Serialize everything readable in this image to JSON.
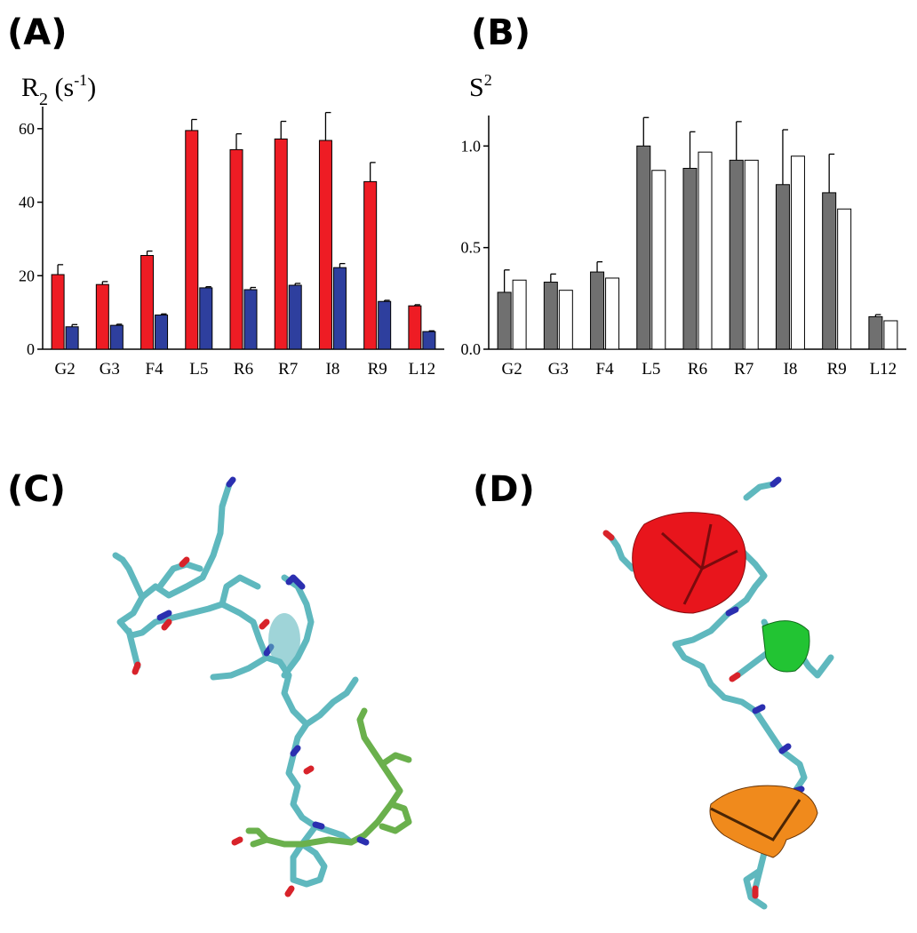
{
  "panels": {
    "a": "(A)",
    "b": "(B)",
    "c": "(C)",
    "d": "(D)"
  },
  "chart_data": [
    {
      "type": "bar",
      "panel": "(A)",
      "ylabel": "R2 (s-1)",
      "categories": [
        "G2",
        "G3",
        "F4",
        "L5",
        "R6",
        "R7",
        "I8",
        "R9",
        "L12"
      ],
      "ylim": [
        0,
        66
      ],
      "yticks": [
        0,
        20,
        40,
        60
      ],
      "grid": false,
      "series": [
        {
          "color": "#ee1c24",
          "values": [
            20.3,
            17.6,
            25.5,
            59.5,
            54.3,
            57.2,
            56.8,
            45.6,
            11.8
          ],
          "errors": [
            2.7,
            0.8,
            1.2,
            3.0,
            4.3,
            4.8,
            7.6,
            5.2,
            0.3
          ]
        },
        {
          "color": "#2e3f9e",
          "values": [
            6.1,
            6.5,
            9.3,
            16.7,
            16.2,
            17.4,
            22.2,
            13.0,
            4.8
          ],
          "errors": [
            0.6,
            0.3,
            0.3,
            0.3,
            0.6,
            0.5,
            1.1,
            0.3,
            0.2
          ]
        }
      ]
    },
    {
      "type": "bar",
      "panel": "(B)",
      "ylabel": "S2",
      "categories": [
        "G2",
        "G3",
        "F4",
        "L5",
        "R6",
        "R7",
        "I8",
        "R9",
        "L12"
      ],
      "ylim": [
        0,
        1.15
      ],
      "yticks": [
        0.0,
        0.5,
        1.0
      ],
      "grid": false,
      "series": [
        {
          "color": "#707070",
          "values": [
            0.28,
            0.33,
            0.38,
            1.0,
            0.89,
            0.93,
            0.81,
            0.77,
            0.16
          ],
          "errors": [
            0.11,
            0.04,
            0.05,
            0.14,
            0.18,
            0.19,
            0.27,
            0.19,
            0.01
          ]
        },
        {
          "color": "#ffffff",
          "values": [
            0.34,
            0.29,
            0.35,
            0.88,
            0.97,
            0.93,
            0.95,
            0.69,
            0.14
          ],
          "errors": [
            0,
            0,
            0,
            0,
            0,
            0,
            0,
            0,
            0
          ]
        }
      ]
    }
  ],
  "structures": {
    "stick_color": "#5fb8be",
    "nitrogen_color": "#2b2fb0",
    "oxygen_color": "#d8232a",
    "highlight_color": "#6ab04c",
    "cone_colors": [
      "#e8151c",
      "#22c433",
      "#f08a1c"
    ]
  }
}
